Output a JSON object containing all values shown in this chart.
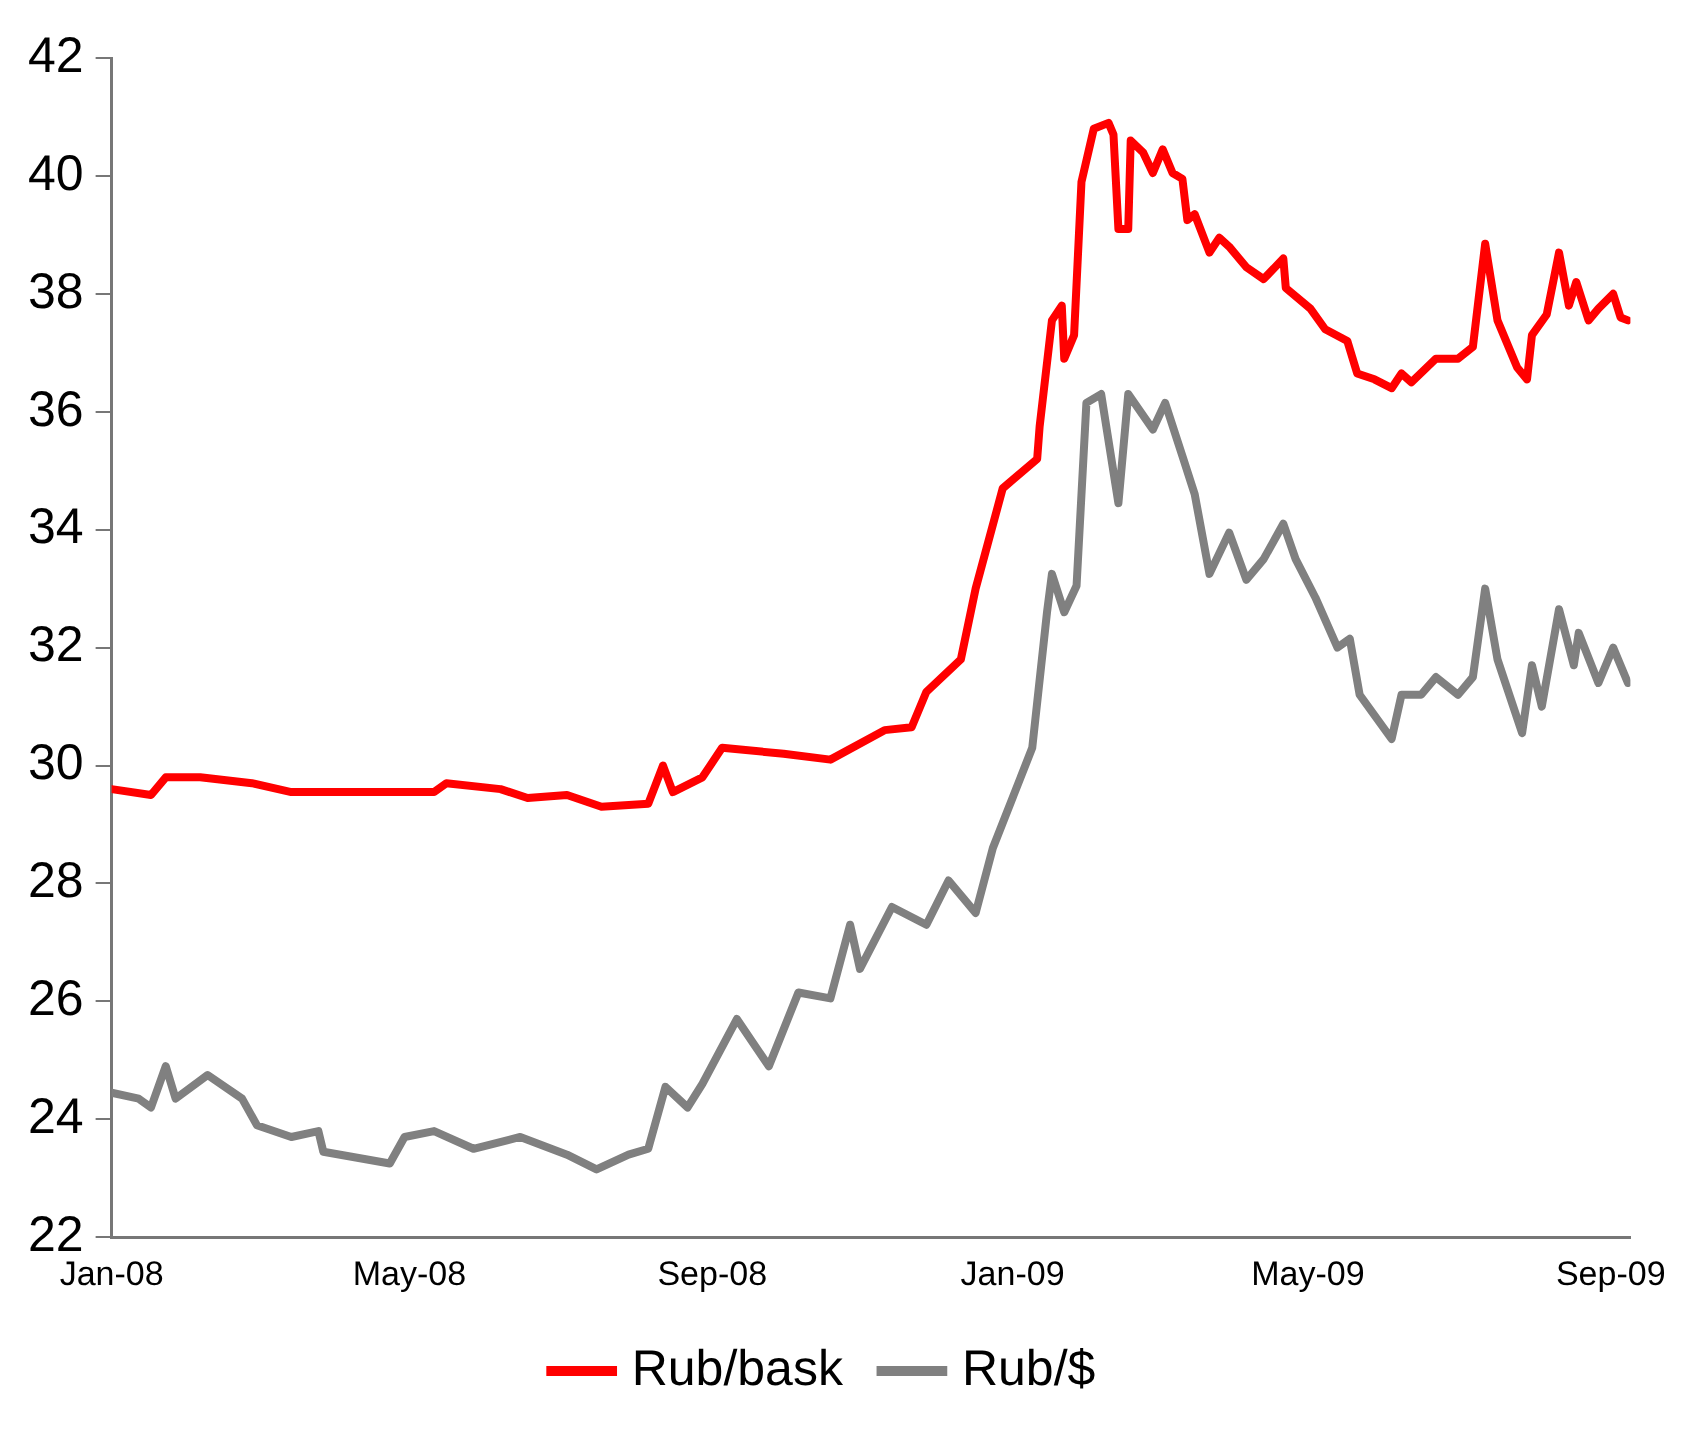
{
  "chart_data": {
    "type": "line",
    "xlim": [
      "2008-01-01",
      "2009-09-09"
    ],
    "xticks": [
      {
        "value": "2008-01",
        "label": "Jan-08"
      },
      {
        "value": "2008-05",
        "label": "May-08"
      },
      {
        "value": "2008-09",
        "label": "Sep-08"
      },
      {
        "value": "2009-01",
        "label": "Jan-09"
      },
      {
        "value": "2009-05",
        "label": "May-09"
      },
      {
        "value": "2009-09",
        "label": "Sep-09"
      }
    ],
    "ylim": [
      22,
      42
    ],
    "yticks": [
      22,
      24,
      26,
      28,
      30,
      32,
      34,
      36,
      38,
      40,
      42
    ],
    "grid": false,
    "legend": "bottom",
    "marker": "none",
    "line_style": "solid",
    "series": [
      {
        "name": "Rub/bask",
        "color": "#ff0000",
        "x": [
          "2008-01-01",
          "2008-01-17",
          "2008-01-23",
          "2008-02-06",
          "2008-02-27",
          "2008-03-14",
          "2008-04-08",
          "2008-05-11",
          "2008-05-16",
          "2008-06-07",
          "2008-06-18",
          "2008-07-04",
          "2008-07-18",
          "2008-08-06",
          "2008-08-12",
          "2008-08-16",
          "2008-08-28",
          "2008-09-05",
          "2008-09-30",
          "2008-10-19",
          "2008-11-10",
          "2008-11-21",
          "2008-11-27",
          "2008-12-11",
          "2008-12-17",
          "2008-12-28",
          "2009-01-11",
          "2009-01-12",
          "2009-01-17",
          "2009-01-21",
          "2009-01-22",
          "2009-01-26",
          "2009-01-29",
          "2009-02-03",
          "2009-02-09",
          "2009-02-11",
          "2009-02-13",
          "2009-02-17",
          "2009-02-18",
          "2009-02-23",
          "2009-02-27",
          "2009-03-03",
          "2009-03-07",
          "2009-03-11",
          "2009-03-13",
          "2009-03-16",
          "2009-03-22",
          "2009-03-26",
          "2009-03-30",
          "2009-04-06",
          "2009-04-13",
          "2009-04-21",
          "2009-04-22",
          "2009-05-02",
          "2009-05-08",
          "2009-05-17",
          "2009-05-21",
          "2009-05-28",
          "2009-06-04",
          "2009-06-08",
          "2009-06-12",
          "2009-06-22",
          "2009-07-01",
          "2009-07-07",
          "2009-07-12",
          "2009-07-17",
          "2009-07-25",
          "2009-07-29",
          "2009-07-31",
          "2009-08-06",
          "2009-08-11",
          "2009-08-15",
          "2009-08-18",
          "2009-08-23",
          "2009-08-27",
          "2009-09-02",
          "2009-09-05",
          "2009-09-08"
        ],
        "values": [
          29.6,
          29.5,
          29.8,
          29.8,
          29.7,
          29.55,
          29.55,
          29.55,
          29.7,
          29.6,
          29.45,
          29.5,
          29.3,
          29.35,
          30.0,
          29.55,
          29.8,
          30.3,
          30.2,
          30.1,
          30.6,
          30.65,
          31.25,
          31.8,
          33.0,
          34.7,
          35.2,
          35.75,
          37.55,
          37.8,
          36.9,
          37.3,
          39.9,
          40.8,
          40.9,
          40.7,
          39.1,
          39.1,
          40.6,
          40.4,
          40.05,
          40.45,
          40.05,
          39.95,
          39.25,
          39.35,
          38.7,
          38.95,
          38.8,
          38.45,
          38.25,
          38.6,
          38.1,
          37.75,
          37.4,
          37.2,
          36.65,
          36.55,
          36.4,
          36.65,
          36.5,
          36.9,
          36.9,
          37.1,
          38.85,
          37.55,
          36.75,
          36.55,
          37.3,
          37.65,
          38.7,
          37.8,
          38.2,
          37.55,
          37.75,
          38.0,
          37.6,
          37.55
        ]
      },
      {
        "name": "Rub/$",
        "color": "#808080",
        "x": [
          "2008-01-01",
          "2008-01-12",
          "2008-01-17",
          "2008-01-23",
          "2008-01-27",
          "2008-02-09",
          "2008-02-23",
          "2008-02-29",
          "2008-03-14",
          "2008-03-25",
          "2008-03-27",
          "2008-04-23",
          "2008-04-29",
          "2008-05-11",
          "2008-05-27",
          "2008-06-15",
          "2008-07-04",
          "2008-07-16",
          "2008-07-29",
          "2008-08-06",
          "2008-08-13",
          "2008-08-22",
          "2008-08-28",
          "2008-09-11",
          "2008-09-24",
          "2008-10-06",
          "2008-10-19",
          "2008-10-27",
          "2008-10-31",
          "2008-11-13",
          "2008-11-27",
          "2008-12-06",
          "2008-12-17",
          "2008-12-24",
          "2009-01-09",
          "2009-01-15",
          "2009-01-17",
          "2009-01-22",
          "2009-01-27",
          "2009-01-31",
          "2009-02-06",
          "2009-02-13",
          "2009-02-17",
          "2009-02-27",
          "2009-03-04",
          "2009-03-11",
          "2009-03-16",
          "2009-03-22",
          "2009-03-30",
          "2009-04-06",
          "2009-04-13",
          "2009-04-21",
          "2009-04-26",
          "2009-05-04",
          "2009-05-13",
          "2009-05-18",
          "2009-05-22",
          "2009-06-04",
          "2009-06-08",
          "2009-06-16",
          "2009-06-22",
          "2009-07-01",
          "2009-07-07",
          "2009-07-12",
          "2009-07-17",
          "2009-07-27",
          "2009-07-31",
          "2009-08-04",
          "2009-08-11",
          "2009-08-17",
          "2009-08-19",
          "2009-08-27",
          "2009-09-02",
          "2009-09-08"
        ],
        "values": [
          24.45,
          24.35,
          24.2,
          24.9,
          24.35,
          24.75,
          24.35,
          23.9,
          23.7,
          23.8,
          23.45,
          23.25,
          23.7,
          23.8,
          23.5,
          23.7,
          23.4,
          23.15,
          23.4,
          23.5,
          24.55,
          24.2,
          24.6,
          25.7,
          24.9,
          26.15,
          26.05,
          27.3,
          26.55,
          27.6,
          27.3,
          28.05,
          27.5,
          28.6,
          30.3,
          32.6,
          33.25,
          32.6,
          33.05,
          36.15,
          36.3,
          34.45,
          36.3,
          35.7,
          36.15,
          35.25,
          34.6,
          33.25,
          33.95,
          33.15,
          33.5,
          34.1,
          33.5,
          32.85,
          32.0,
          32.15,
          31.2,
          30.45,
          31.2,
          31.2,
          31.5,
          31.2,
          31.5,
          33.0,
          31.8,
          30.55,
          31.7,
          31.0,
          32.65,
          31.7,
          32.25,
          31.4,
          32.0,
          31.4
        ]
      }
    ]
  }
}
